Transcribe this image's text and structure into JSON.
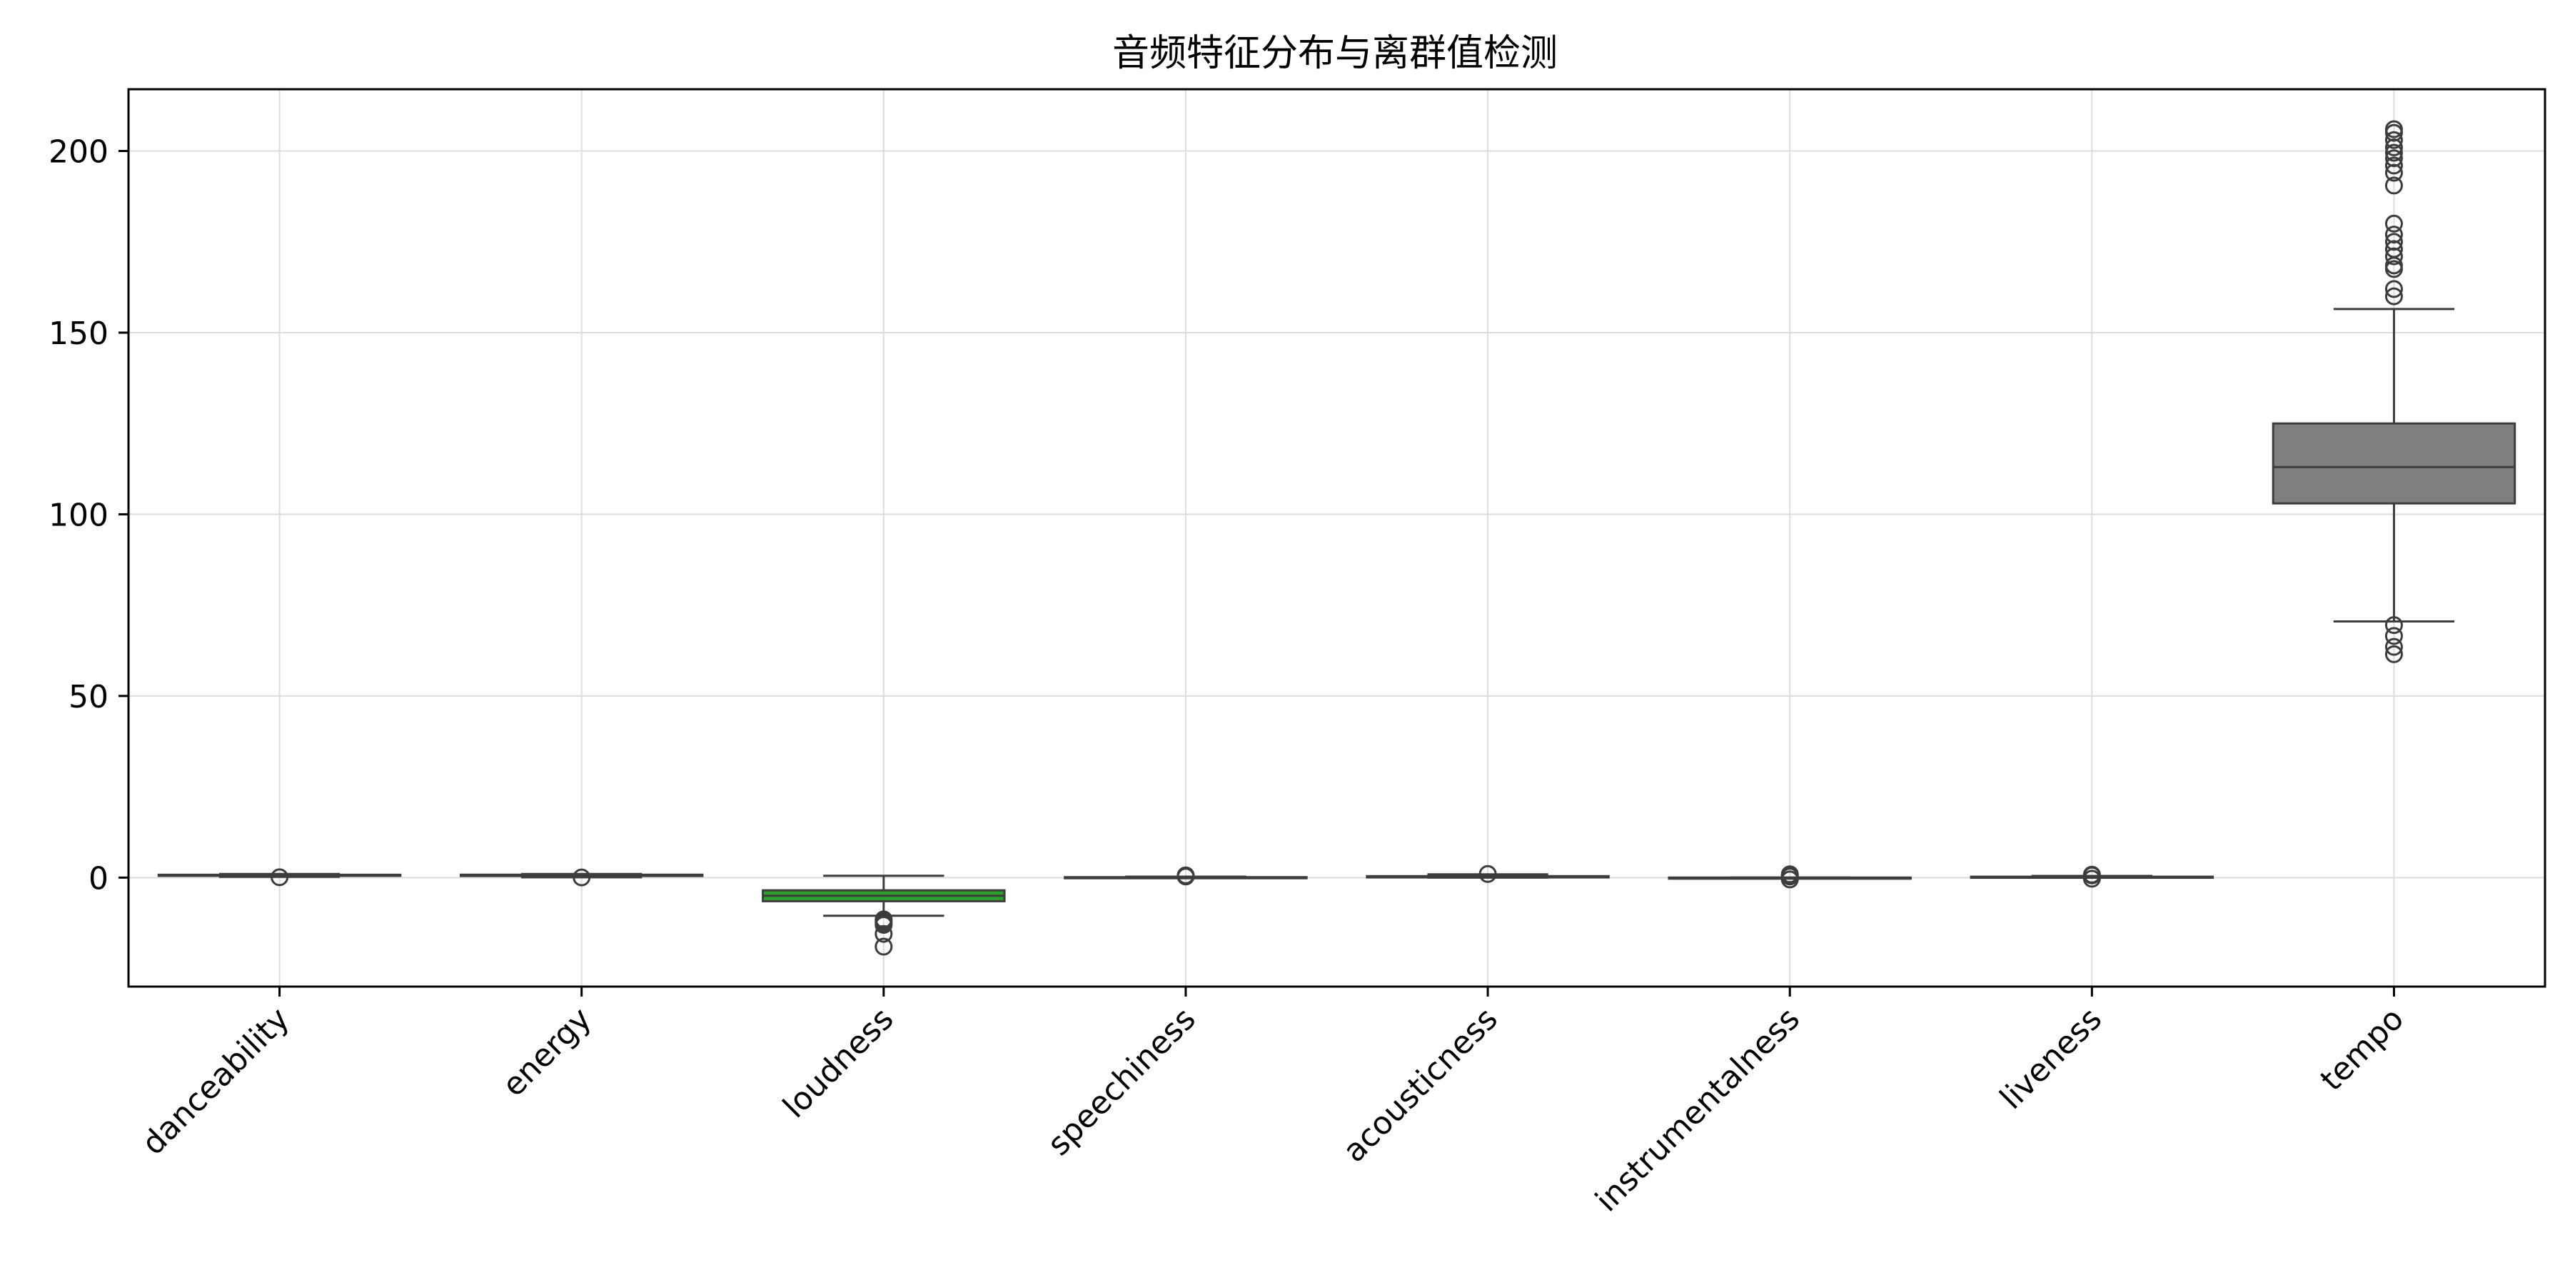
{
  "chart_data": {
    "type": "boxplot",
    "title": "音频特征分布与离群值检测",
    "xlabel": "",
    "ylabel": "",
    "ylim": [
      -30,
      217
    ],
    "yticks": [
      0,
      50,
      100,
      150,
      200
    ],
    "grid": true,
    "categories": [
      "danceability",
      "energy",
      "loudness",
      "speechiness",
      "acousticness",
      "instrumentalness",
      "liveness",
      "tempo"
    ],
    "boxes": [
      {
        "category": "danceability",
        "whisker_low": 0.2,
        "q1": 0.5,
        "median": 0.65,
        "q3": 0.78,
        "whisker_high": 1.0,
        "outliers": [
          0.1
        ],
        "color": "#1f77b4"
      },
      {
        "category": "energy",
        "whisker_low": 0.1,
        "q1": 0.45,
        "median": 0.65,
        "q3": 0.8,
        "whisker_high": 1.0,
        "outliers": [
          0.05
        ],
        "color": "#ff7f0e"
      },
      {
        "category": "loudness",
        "whisker_low": -10.5,
        "q1": -6.5,
        "median": -5.0,
        "q3": -3.5,
        "whisker_high": 0.5,
        "outliers": [
          -11.5,
          -12.0,
          -12.5,
          -13.0,
          -15.5,
          -19.0
        ],
        "color": "#2ca02c"
      },
      {
        "category": "speechiness",
        "whisker_low": 0.0,
        "q1": 0.04,
        "median": 0.06,
        "q3": 0.12,
        "whisker_high": 0.25,
        "outliers": [
          0.3,
          0.45,
          0.6
        ],
        "color": "#d62728"
      },
      {
        "category": "acousticness",
        "whisker_low": 0.0,
        "q1": 0.05,
        "median": 0.15,
        "q3": 0.4,
        "whisker_high": 0.9,
        "outliers": [
          1.0
        ],
        "color": "#9467bd"
      },
      {
        "category": "instrumentalness",
        "whisker_low": 0.0,
        "q1": 0.0,
        "median": 0.0,
        "q3": 0.0,
        "whisker_high": 0.0,
        "outliers": [
          0.3,
          0.6,
          0.9,
          -0.5
        ],
        "color": "#8c564b"
      },
      {
        "category": "liveness",
        "whisker_low": 0.02,
        "q1": 0.1,
        "median": 0.13,
        "q3": 0.25,
        "whisker_high": 0.45,
        "outliers": [
          0.6,
          0.8,
          -0.3
        ],
        "color": "#e377c2"
      },
      {
        "category": "tempo",
        "whisker_low": 70.5,
        "q1": 103,
        "median": 113,
        "q3": 125,
        "whisker_high": 156.5,
        "outliers": [
          61.5,
          63.5,
          66.5,
          69.5,
          160,
          162,
          167.5,
          168.5,
          171,
          173,
          175,
          177,
          180,
          190.5,
          194,
          196,
          198,
          199.5,
          201,
          203,
          205,
          206
        ],
        "color": "#7f7f7f"
      }
    ]
  }
}
